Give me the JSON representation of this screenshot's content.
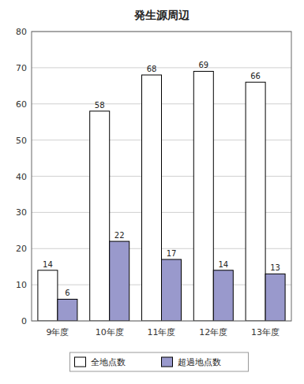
{
  "chart_data": {
    "type": "bar",
    "title": "発生源周辺",
    "categories": [
      "9年度",
      "10年度",
      "11年度",
      "12年度",
      "13年度"
    ],
    "series": [
      {
        "name": "全地点数",
        "color": "#ffffff",
        "values": [
          14,
          58,
          68,
          69,
          66
        ]
      },
      {
        "name": "超過地点数",
        "color": "#9999cc",
        "values": [
          6,
          22,
          17,
          14,
          13
        ]
      }
    ],
    "ylim": [
      0,
      80
    ],
    "yticks": [
      0,
      10,
      20,
      30,
      40,
      50,
      60,
      70,
      80
    ],
    "grid": true,
    "legend": "bottom",
    "data_labels": true
  }
}
